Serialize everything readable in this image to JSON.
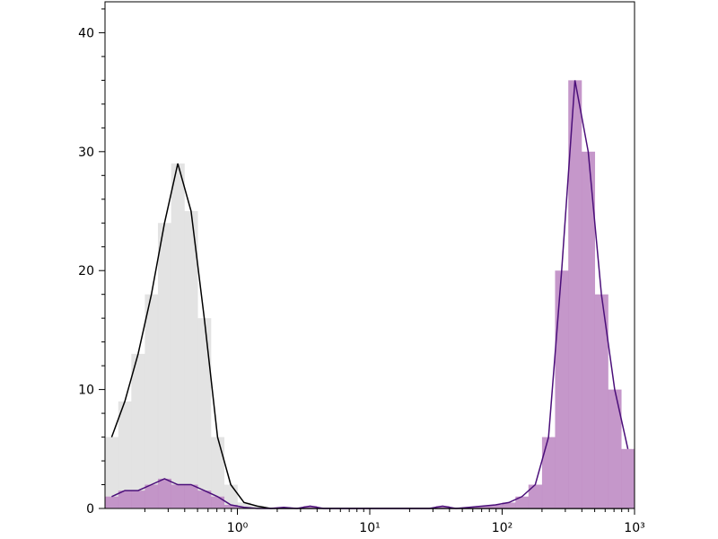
{
  "chart_data": {
    "type": "histogram",
    "xscale": "log",
    "bins": [
      0.1,
      0.126,
      0.158,
      0.2,
      0.251,
      0.316,
      0.398,
      0.501,
      0.631,
      0.794,
      1,
      1.26,
      1.58,
      2,
      2.51,
      3.16,
      3.98,
      5.01,
      6.31,
      7.94,
      10,
      12.6,
      15.8,
      20,
      25.1,
      31.6,
      39.8,
      50.1,
      63.1,
      79.4,
      100,
      126,
      158,
      200,
      251,
      316,
      398,
      501,
      631,
      794,
      1000
    ],
    "series": [
      {
        "color": "#e0e0e0",
        "line_color": "#000000",
        "values": [
          6,
          9,
          13,
          18,
          24,
          29,
          25,
          16,
          6,
          2,
          0.5,
          0.2,
          0,
          0,
          0,
          0,
          0,
          0,
          0,
          0,
          0,
          0,
          0,
          0,
          0,
          0,
          0,
          0,
          0,
          0,
          0,
          0,
          0,
          0,
          0,
          0,
          0,
          0,
          0,
          0
        ]
      },
      {
        "color": "#bf8cc4",
        "line_color": "#4b0f7a",
        "values": [
          1,
          1.5,
          1.5,
          2,
          2.5,
          2,
          2,
          1.5,
          1,
          0.3,
          0.1,
          0,
          0,
          0.1,
          0,
          0.2,
          0,
          0,
          0,
          0,
          0,
          0,
          0,
          0,
          0,
          0.2,
          0,
          0.1,
          0.2,
          0.3,
          0.5,
          1,
          2,
          6,
          20,
          36,
          30,
          18,
          10,
          5
        ]
      }
    ],
    "xlim": [
      0.1,
      1000
    ],
    "xticks": [
      {
        "value": 1,
        "label": "10⁰"
      },
      {
        "value": 10,
        "label": "10¹"
      },
      {
        "value": 100,
        "label": "10²"
      },
      {
        "value": 1000,
        "label": "10³"
      }
    ],
    "xminor_ticks": [
      0.2,
      0.3,
      0.4,
      0.5,
      0.6,
      0.7,
      0.8,
      0.9,
      2,
      3,
      4,
      5,
      6,
      7,
      8,
      9,
      20,
      30,
      40,
      50,
      60,
      70,
      80,
      90,
      200,
      300,
      400,
      500,
      600,
      700,
      800,
      900
    ],
    "ylim": [
      0,
      42.6
    ],
    "yticks": [
      0,
      10,
      20,
      30,
      40
    ],
    "yminor_ticks": [
      2,
      4,
      6,
      8,
      12,
      14,
      16,
      18,
      22,
      24,
      26,
      28,
      32,
      34,
      36,
      38,
      42
    ],
    "grid": false
  }
}
